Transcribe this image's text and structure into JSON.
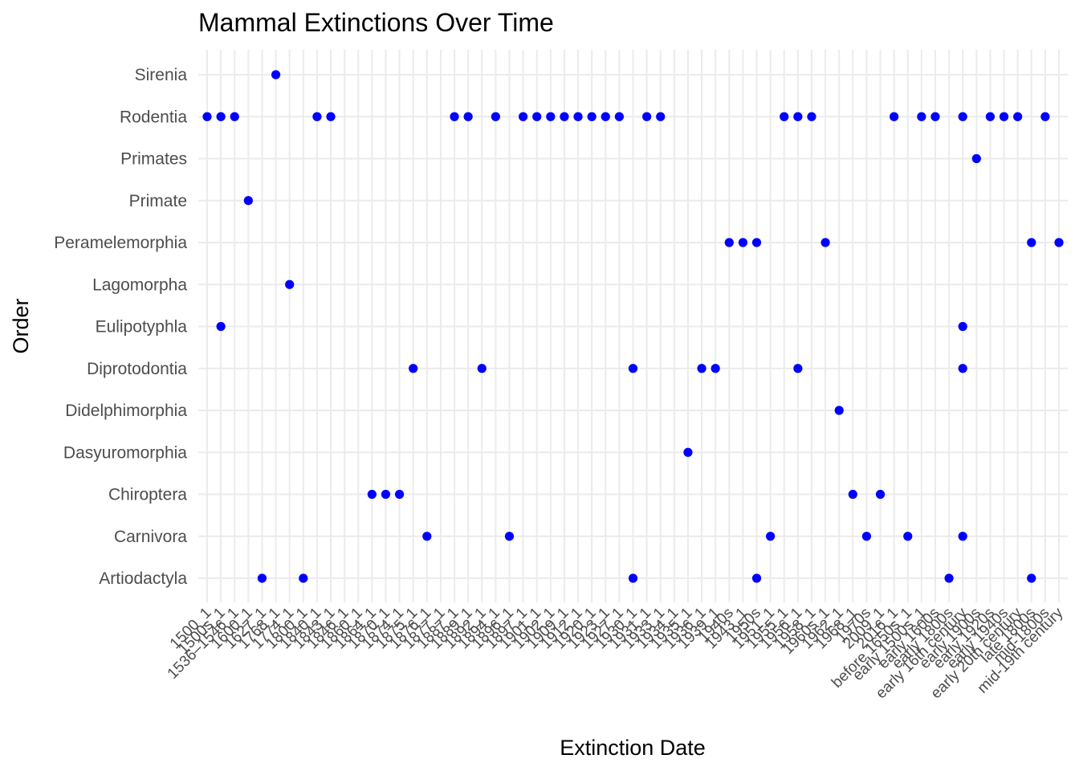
{
  "chart_data": {
    "type": "scatter",
    "title": "Mammal Extinctions Over Time",
    "xlabel": "Extinction Date",
    "ylabel": "Order",
    "grid": true,
    "legend": "none",
    "point_color": "#0000ff",
    "background": "#ffffff",
    "grid_color": "#ebebeb",
    "categories_x": [
      "1500",
      "1500s",
      "1536–1546",
      "1600",
      "1627",
      "1768",
      "1774",
      "1800",
      "1840",
      "1843",
      "1846",
      "1860",
      "1864",
      "1870",
      "1874",
      "1875",
      "1876",
      "1877",
      "1887",
      "1889",
      "1892",
      "1894",
      "1896",
      "1897",
      "1901",
      "1902",
      "1909",
      "1912",
      "1920",
      "1923",
      "1927",
      "1930",
      "1931",
      "1933",
      "1934",
      "1935",
      "1936",
      "1939",
      "1940s",
      "1943",
      "1950s",
      "1951",
      "1955",
      "1956",
      "1958",
      "1960s",
      "1962",
      "1968",
      "1970s",
      "2009",
      "2016",
      "before 1650s",
      "early 1500s",
      "early 1600s",
      "early 1800s",
      "early 16th century",
      "early 1900s",
      "early 1920s",
      "early 1940s",
      "early 20th century",
      "late 1800s",
      "mid-1800s",
      "mid-19th century"
    ],
    "x_tick_labels": [
      "1500_1",
      "1500s_1",
      "1536–1546_1",
      "1600_1",
      "1627_1",
      "1768_1",
      "1774_1",
      "1800_1",
      "1840_1",
      "1843_1",
      "1846_1",
      "1860_1",
      "1864_1",
      "1870_1",
      "1874_1",
      "1875_1",
      "1876_1",
      "1877_1",
      "1887_1",
      "1889_1",
      "1892_1",
      "1894_1",
      "1896_1",
      "1897_1",
      "1901_1",
      "1902_1",
      "1909_1",
      "1912_1",
      "1920_1",
      "1923_1",
      "1927_1",
      "1930_1",
      "1931_1",
      "1933_1",
      "1934_1",
      "1935_1",
      "1936_1",
      "1939_1",
      "1940s",
      "1943_1",
      "1950s",
      "1951_1",
      "1955_1",
      "1956_1",
      "1958_1",
      "1960s_1",
      "1962_1",
      "1968_1",
      "1970s",
      "2009_1",
      "2016_1",
      "before 1650s_1",
      "early 1500s_1",
      "early 1600s",
      "early 1800s",
      "early 16th century",
      "early 1900s",
      "early 1920s",
      "early 1940s",
      "early 20th century",
      "late 1800s",
      "mid-1800s",
      "mid-19th century"
    ],
    "categories_y": [
      "Artiodactyla",
      "Carnivora",
      "Chiroptera",
      "Dasyuromorphia",
      "Didelphimorphia",
      "Diprotodontia",
      "Eulipotyphla",
      "Lagomorpha",
      "Peramelemorphia",
      "Primate",
      "Primates",
      "Rodentia",
      "Sirenia"
    ],
    "points": [
      {
        "x": "1768",
        "y": "Sirenia"
      },
      {
        "x": "1500",
        "y": "Rodentia"
      },
      {
        "x": "1500s",
        "y": "Rodentia"
      },
      {
        "x": "1536–1546",
        "y": "Rodentia"
      },
      {
        "x": "1840",
        "y": "Rodentia"
      },
      {
        "x": "1843",
        "y": "Rodentia"
      },
      {
        "x": "1887",
        "y": "Rodentia"
      },
      {
        "x": "1889",
        "y": "Rodentia"
      },
      {
        "x": "1894",
        "y": "Rodentia"
      },
      {
        "x": "1897",
        "y": "Rodentia"
      },
      {
        "x": "1901",
        "y": "Rodentia"
      },
      {
        "x": "1902",
        "y": "Rodentia"
      },
      {
        "x": "1909",
        "y": "Rodentia"
      },
      {
        "x": "1912",
        "y": "Rodentia"
      },
      {
        "x": "1920",
        "y": "Rodentia"
      },
      {
        "x": "1923",
        "y": "Rodentia"
      },
      {
        "x": "1927",
        "y": "Rodentia"
      },
      {
        "x": "1931",
        "y": "Rodentia"
      },
      {
        "x": "1933",
        "y": "Rodentia"
      },
      {
        "x": "1955",
        "y": "Rodentia"
      },
      {
        "x": "1956",
        "y": "Rodentia"
      },
      {
        "x": "1958",
        "y": "Rodentia"
      },
      {
        "x": "2016",
        "y": "Rodentia"
      },
      {
        "x": "early 1500s",
        "y": "Rodentia"
      },
      {
        "x": "early 1600s",
        "y": "Rodentia"
      },
      {
        "x": "early 16th century",
        "y": "Rodentia"
      },
      {
        "x": "early 1920s",
        "y": "Rodentia"
      },
      {
        "x": "early 1940s",
        "y": "Rodentia"
      },
      {
        "x": "early 20th century",
        "y": "Rodentia"
      },
      {
        "x": "mid-1800s",
        "y": "Rodentia"
      },
      {
        "x": "early 1900s",
        "y": "Primates"
      },
      {
        "x": "1600",
        "y": "Primate"
      },
      {
        "x": "1940s",
        "y": "Peramelemorphia"
      },
      {
        "x": "1943",
        "y": "Peramelemorphia"
      },
      {
        "x": "1950s",
        "y": "Peramelemorphia"
      },
      {
        "x": "1960s",
        "y": "Peramelemorphia"
      },
      {
        "x": "late 1800s",
        "y": "Peramelemorphia"
      },
      {
        "x": "mid-19th century",
        "y": "Peramelemorphia"
      },
      {
        "x": "1774",
        "y": "Lagomorpha"
      },
      {
        "x": "1500s",
        "y": "Eulipotyphla"
      },
      {
        "x": "early 16th century",
        "y": "Eulipotyphla"
      },
      {
        "x": "1875",
        "y": "Diprotodontia"
      },
      {
        "x": "1892",
        "y": "Diprotodontia"
      },
      {
        "x": "1930",
        "y": "Diprotodontia"
      },
      {
        "x": "1936",
        "y": "Diprotodontia"
      },
      {
        "x": "1939",
        "y": "Diprotodontia"
      },
      {
        "x": "1956",
        "y": "Diprotodontia"
      },
      {
        "x": "early 16th century",
        "y": "Diprotodontia"
      },
      {
        "x": "1962",
        "y": "Didelphimorphia"
      },
      {
        "x": "1935",
        "y": "Dasyuromorphia"
      },
      {
        "x": "1864",
        "y": "Chiroptera"
      },
      {
        "x": "1870",
        "y": "Chiroptera"
      },
      {
        "x": "1874",
        "y": "Chiroptera"
      },
      {
        "x": "1968",
        "y": "Chiroptera"
      },
      {
        "x": "2009",
        "y": "Chiroptera"
      },
      {
        "x": "1876",
        "y": "Carnivora"
      },
      {
        "x": "1896",
        "y": "Carnivora"
      },
      {
        "x": "1951",
        "y": "Carnivora"
      },
      {
        "x": "1970s",
        "y": "Carnivora"
      },
      {
        "x": "before 1650s",
        "y": "Carnivora"
      },
      {
        "x": "early 16th century",
        "y": "Carnivora"
      },
      {
        "x": "1627",
        "y": "Artiodactyla"
      },
      {
        "x": "1800",
        "y": "Artiodactyla"
      },
      {
        "x": "1930",
        "y": "Artiodactyla"
      },
      {
        "x": "1950s",
        "y": "Artiodactyla"
      },
      {
        "x": "early 1800s",
        "y": "Artiodactyla"
      },
      {
        "x": "late 1800s",
        "y": "Artiodactyla"
      }
    ]
  }
}
